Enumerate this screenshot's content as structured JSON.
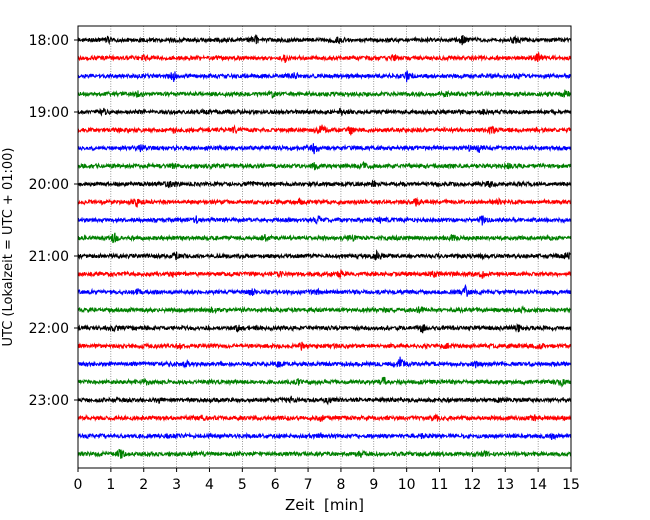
{
  "chart_data": {
    "type": "line",
    "xlabel": "Zeit  [min]",
    "ylabel": "UTC (Lokalzeit = UTC + 01:00)",
    "xlim": [
      0,
      15
    ],
    "x_ticks": [
      "0",
      "1",
      "2",
      "3",
      "4",
      "5",
      "6",
      "7",
      "8",
      "9",
      "10",
      "11",
      "12",
      "13",
      "14",
      "15"
    ],
    "y_ticks": [
      {
        "label": "18:00",
        "trace": 0
      },
      {
        "label": "19:00",
        "trace": 4
      },
      {
        "label": "20:00",
        "trace": 8
      },
      {
        "label": "21:00",
        "trace": 12
      },
      {
        "label": "22:00",
        "trace": 16
      },
      {
        "label": "23:00",
        "trace": 20
      }
    ],
    "grid": {
      "x": true,
      "y": false
    },
    "trace_interval_minutes": 15,
    "color_cycle": [
      "#000000",
      "#ff0000",
      "#0000ff",
      "#008000"
    ],
    "series": [
      {
        "start": "18:00",
        "events": [
          [
            0.9,
            0.6
          ],
          [
            5.4,
            0.9
          ],
          [
            7.9,
            1.0
          ],
          [
            11.7,
            0.8
          ],
          [
            13.3,
            0.7
          ]
        ]
      },
      {
        "start": "18:15",
        "events": [
          [
            2.0,
            0.5
          ],
          [
            6.3,
            0.7
          ],
          [
            9.6,
            0.5
          ],
          [
            14.0,
            1.0
          ]
        ]
      },
      {
        "start": "18:30",
        "events": [
          [
            2.9,
            0.9
          ],
          [
            6.6,
            0.5
          ],
          [
            10.0,
            0.9
          ],
          [
            13.4,
            0.4
          ]
        ]
      },
      {
        "start": "18:45",
        "events": [
          [
            1.8,
            0.4
          ],
          [
            5.9,
            0.6
          ],
          [
            11.2,
            0.4
          ],
          [
            14.8,
            0.6
          ]
        ]
      },
      {
        "start": "19:00",
        "events": [
          [
            0.8,
            0.5
          ],
          [
            3.9,
            0.4
          ],
          [
            8.0,
            0.5
          ],
          [
            12.3,
            0.4
          ]
        ]
      },
      {
        "start": "19:15",
        "events": [
          [
            2.9,
            0.4
          ],
          [
            4.8,
            0.6
          ],
          [
            7.4,
            1.0
          ],
          [
            8.3,
            0.7
          ],
          [
            12.6,
            0.6
          ]
        ]
      },
      {
        "start": "19:30",
        "events": [
          [
            1.9,
            0.5
          ],
          [
            7.2,
            1.0
          ],
          [
            11.9,
            0.4
          ],
          [
            12.2,
            0.6
          ]
        ]
      },
      {
        "start": "19:45",
        "events": [
          [
            2.9,
            0.4
          ],
          [
            7.2,
            0.5
          ],
          [
            8.7,
            0.7
          ],
          [
            13.1,
            0.5
          ]
        ]
      },
      {
        "start": "20:00",
        "events": [
          [
            2.8,
            0.6
          ],
          [
            5.3,
            0.6
          ],
          [
            9.0,
            0.5
          ],
          [
            12.5,
            0.7
          ]
        ]
      },
      {
        "start": "20:15",
        "events": [
          [
            1.8,
            1.0
          ],
          [
            6.7,
            0.7
          ],
          [
            10.3,
            0.6
          ],
          [
            12.8,
            0.4
          ]
        ]
      },
      {
        "start": "20:30",
        "events": [
          [
            3.6,
            0.5
          ],
          [
            7.3,
            0.6
          ],
          [
            9.2,
            0.4
          ],
          [
            12.3,
            0.9
          ]
        ]
      },
      {
        "start": "20:45",
        "events": [
          [
            1.1,
            0.9
          ],
          [
            5.7,
            0.4
          ],
          [
            8.3,
            0.8
          ],
          [
            11.4,
            0.5
          ]
        ]
      },
      {
        "start": "21:00",
        "events": [
          [
            3.0,
            0.5
          ],
          [
            9.1,
            0.8
          ],
          [
            12.3,
            0.4
          ],
          [
            14.9,
            0.6
          ]
        ]
      },
      {
        "start": "21:15",
        "events": [
          [
            2.9,
            0.4
          ],
          [
            6.1,
            0.5
          ],
          [
            8.0,
            0.5
          ],
          [
            10.8,
            0.7
          ],
          [
            12.3,
            0.5
          ]
        ]
      },
      {
        "start": "21:30",
        "events": [
          [
            1.8,
            0.4
          ],
          [
            5.3,
            0.6
          ],
          [
            7.3,
            0.6
          ],
          [
            11.8,
            1.0
          ]
        ]
      },
      {
        "start": "21:45",
        "events": [
          [
            4.1,
            0.4
          ],
          [
            9.3,
            0.4
          ],
          [
            10.4,
            0.5
          ],
          [
            13.5,
            0.4
          ]
        ]
      },
      {
        "start": "22:00",
        "events": [
          [
            1.1,
            0.5
          ],
          [
            4.9,
            0.9
          ],
          [
            10.5,
            0.8
          ],
          [
            13.4,
            0.5
          ]
        ]
      },
      {
        "start": "22:15",
        "events": [
          [
            3.1,
            0.4
          ],
          [
            6.8,
            0.5
          ],
          [
            11.2,
            0.4
          ],
          [
            14.1,
            0.5
          ]
        ]
      },
      {
        "start": "22:30",
        "events": [
          [
            3.3,
            0.4
          ],
          [
            6.1,
            0.4
          ],
          [
            9.8,
            1.0
          ],
          [
            12.1,
            0.4
          ]
        ]
      },
      {
        "start": "22:45",
        "events": [
          [
            2.1,
            0.4
          ],
          [
            6.7,
            0.4
          ],
          [
            9.3,
            0.8
          ],
          [
            14.7,
            0.7
          ]
        ]
      },
      {
        "start": "23:00",
        "events": [
          [
            2.5,
            0.4
          ],
          [
            6.5,
            0.5
          ],
          [
            7.6,
            0.6
          ],
          [
            12.8,
            0.4
          ]
        ]
      },
      {
        "start": "23:15",
        "events": [
          [
            3.8,
            0.4
          ],
          [
            7.4,
            0.5
          ],
          [
            10.9,
            0.5
          ],
          [
            13.9,
            0.4
          ]
        ]
      },
      {
        "start": "23:30",
        "events": [
          [
            2.8,
            0.4
          ],
          [
            7.4,
            0.5
          ],
          [
            10.5,
            0.4
          ],
          [
            14.4,
            0.5
          ]
        ]
      },
      {
        "start": "23:45",
        "events": [
          [
            1.3,
            1.0
          ],
          [
            3.5,
            0.4
          ],
          [
            8.6,
            0.4
          ],
          [
            12.4,
            0.4
          ]
        ]
      }
    ]
  }
}
